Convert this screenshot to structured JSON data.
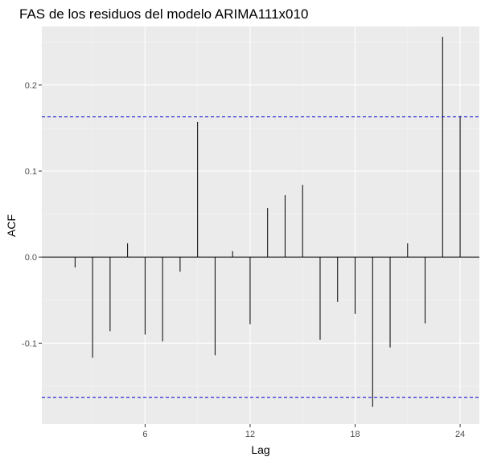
{
  "chart_data": {
    "type": "bar",
    "title": "FAS de los residuos del modelo ARIMA111x010",
    "xlabel": "Lag",
    "ylabel": "ACF",
    "x": [
      1,
      2,
      3,
      4,
      5,
      6,
      7,
      8,
      9,
      10,
      11,
      12,
      13,
      14,
      15,
      16,
      17,
      18,
      19,
      20,
      21,
      22,
      23,
      24
    ],
    "values": [
      0.0,
      -0.012,
      -0.117,
      -0.086,
      0.016,
      -0.09,
      -0.098,
      -0.017,
      0.157,
      -0.114,
      0.007,
      -0.078,
      0.057,
      0.072,
      0.084,
      -0.096,
      -0.052,
      -0.066,
      -0.174,
      -0.105,
      0.016,
      -0.077,
      0.256,
      0.164
    ],
    "x_ticks": [
      6,
      12,
      18,
      24
    ],
    "y_ticks": [
      -0.1,
      0.0,
      0.1,
      0.2
    ],
    "y_tick_labels": [
      "-0.1",
      "0.0",
      "0.1",
      "0.2"
    ],
    "confidence_limit": 0.163,
    "xlim": [
      0.1,
      25.1
    ],
    "ylim": [
      -0.194,
      0.268
    ],
    "grid": true,
    "colors": {
      "panel_background": "#ebebeb",
      "grid_major": "#ffffff",
      "grid_minor": "#f5f5f5",
      "bar": "#000000",
      "zero_line": "#000000",
      "confidence_line": "#0000cc"
    }
  }
}
